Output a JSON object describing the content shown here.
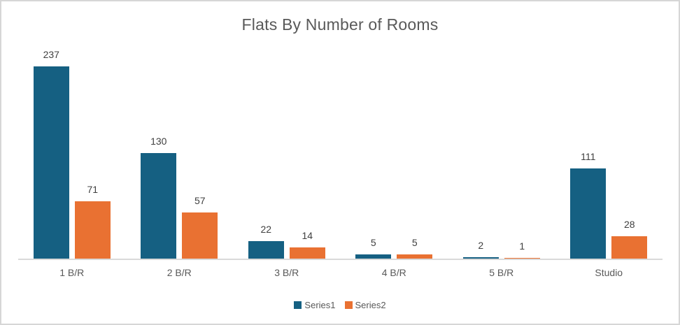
{
  "chart_data": {
    "type": "bar",
    "title": "Flats By Number of Rooms",
    "categories": [
      "1 B/R",
      "2 B/R",
      "3 B/R",
      "4 B/R",
      "5 B/R",
      "Studio"
    ],
    "series": [
      {
        "name": "Series1",
        "color": "#156082",
        "values": [
          237,
          130,
          22,
          5,
          2,
          111
        ]
      },
      {
        "name": "Series2",
        "color": "#E97132",
        "values": [
          71,
          57,
          14,
          5,
          1,
          28
        ]
      }
    ],
    "data_labels": true,
    "legend": {
      "position": "bottom",
      "entries": [
        "Series1",
        "Series2"
      ]
    },
    "grid": false,
    "xlabel": "",
    "ylabel": "",
    "ylim": [
      0,
      250
    ],
    "colors": {
      "title_text": "#595959",
      "axis_label_text": "#595959",
      "data_label_text": "#404040",
      "axis_line": "#D9D9D9",
      "frame_border": "#D6D6D6",
      "background": "#FFFFFF"
    }
  }
}
